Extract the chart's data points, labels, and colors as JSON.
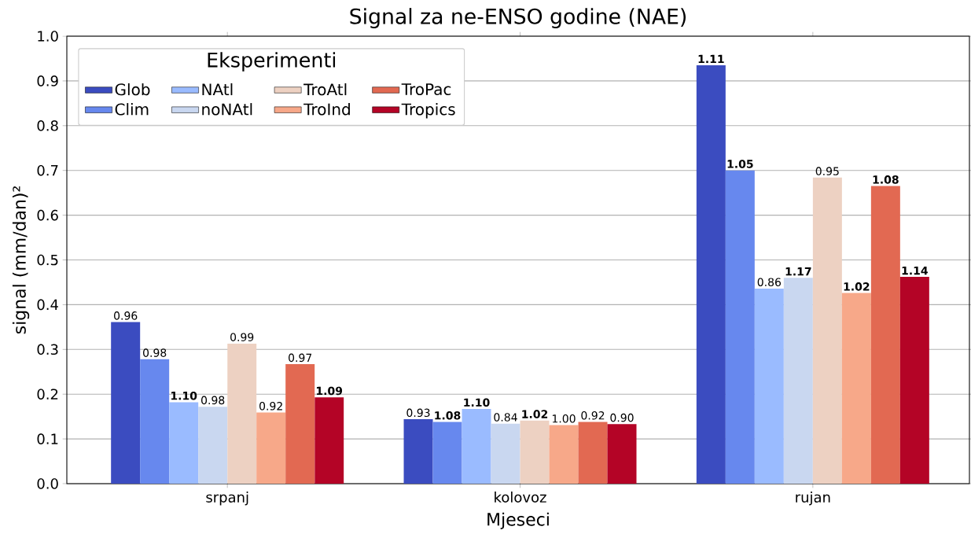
{
  "chart_data": {
    "type": "bar",
    "title": "Signal za ne-ENSO godine (NAE)",
    "xlabel": "Mjeseci",
    "ylabel": "signal (mm/dan)²",
    "legend_title": "Eksperimenti",
    "categories": [
      "srpanj",
      "kolovoz",
      "rujan"
    ],
    "series": [
      {
        "name": "Glob",
        "color": "#3b4cc0",
        "values": [
          0.361,
          0.144,
          0.935
        ]
      },
      {
        "name": "Clim",
        "color": "#6788ee",
        "values": [
          0.278,
          0.138,
          0.7
        ]
      },
      {
        "name": "NAtl",
        "color": "#9abbff",
        "values": [
          0.182,
          0.167,
          0.436
        ]
      },
      {
        "name": "noNAtl",
        "color": "#c9d7f0",
        "values": [
          0.172,
          0.134,
          0.46
        ]
      },
      {
        "name": "TroAtl",
        "color": "#edd1c2",
        "values": [
          0.313,
          0.141,
          0.684
        ]
      },
      {
        "name": "TroInd",
        "color": "#f7a889",
        "values": [
          0.159,
          0.131,
          0.426
        ]
      },
      {
        "name": "TroPac",
        "color": "#e26952",
        "values": [
          0.267,
          0.138,
          0.665
        ]
      },
      {
        "name": "Tropics",
        "color": "#b40426",
        "values": [
          0.193,
          0.133,
          0.462
        ]
      }
    ],
    "annotations": [
      "0.96",
      "0.93",
      "**1.11**",
      "0.98",
      "**1.08**",
      "**1.05**",
      "**1.10**",
      "**1.10**",
      "0.86",
      "0.98",
      "0.84",
      "**1.17**",
      "0.99",
      "**1.02**",
      "0.95",
      "0.92",
      "1.00",
      "**1.02**",
      "0.97",
      "0.92",
      "**1.08**",
      "**1.09**",
      "0.90",
      "**1.14**"
    ],
    "ylim": [
      0,
      1.0
    ],
    "yticks": [
      {
        "value": 0,
        "label": "0.0"
      },
      {
        "value": 0.1,
        "label": "0.1"
      },
      {
        "value": 0.2,
        "label": "0.2"
      },
      {
        "value": 0.3,
        "label": "0.3"
      },
      {
        "value": 0.4,
        "label": "0.4"
      },
      {
        "value": 0.5,
        "label": "0.5"
      },
      {
        "value": 0.6,
        "label": "0.6"
      },
      {
        "value": 0.7,
        "label": "0.7"
      },
      {
        "value": 0.8,
        "label": "0.8"
      },
      {
        "value": 0.9,
        "label": "0.9"
      },
      {
        "value": 1.0,
        "label": "1.0"
      }
    ],
    "grid": "y",
    "legend": "top left"
  }
}
